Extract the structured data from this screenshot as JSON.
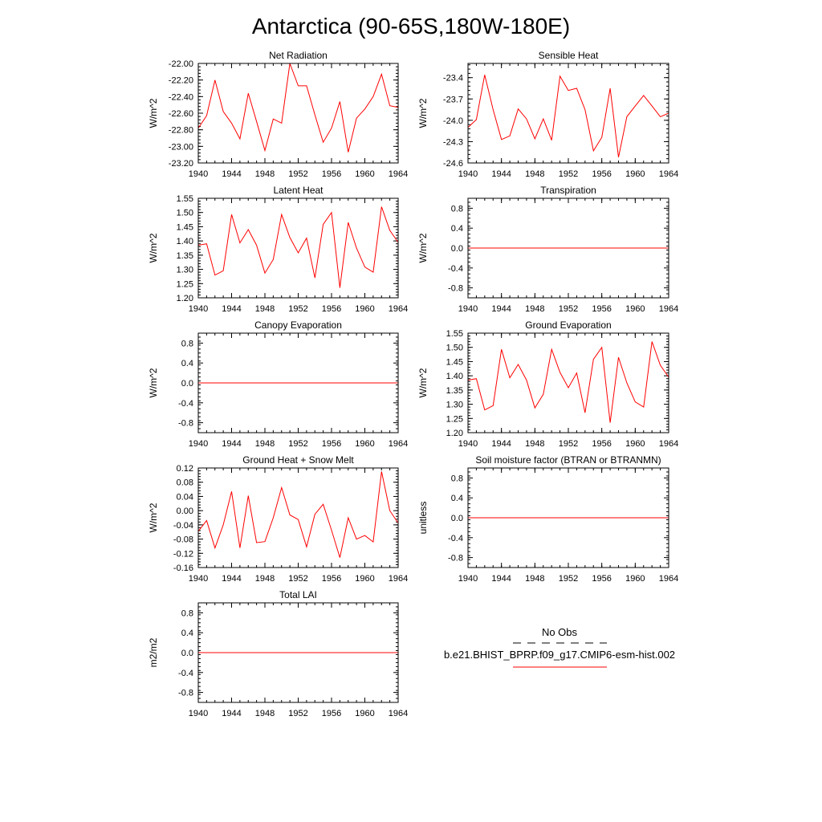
{
  "title": "Antarctica (90-65S,180W-180E)",
  "colors": {
    "model": "#ff0000",
    "obs": "#000000",
    "frame": "#000000"
  },
  "legend": {
    "obs_label": "No Obs",
    "model_label": "b.e21.BHIST_BPRP.f09_g17.CMIP6-esm-hist.002"
  },
  "chart_data": [
    {
      "type": "line",
      "title": "Net Radiation",
      "ylabel": "W/m^2",
      "xlim": [
        1940,
        1964
      ],
      "ylim": [
        -23.2,
        -22.0
      ],
      "x_ticks": [
        "1940",
        "1944",
        "1948",
        "1952",
        "1956",
        "1960",
        "1964"
      ],
      "y_ticks": [
        "-22.00",
        "-22.20",
        "-22.40",
        "-22.60",
        "-22.80",
        "-23.00",
        "-23.20"
      ],
      "y_tick_values": [
        -22.0,
        -22.2,
        -22.4,
        -22.6,
        -22.8,
        -23.0,
        -23.2
      ],
      "x": [
        1940,
        1941,
        1942,
        1943,
        1944,
        1945,
        1946,
        1947,
        1948,
        1949,
        1950,
        1951,
        1952,
        1953,
        1954,
        1955,
        1956,
        1957,
        1958,
        1959,
        1960,
        1961,
        1962,
        1963,
        1964
      ],
      "series": [
        {
          "values": [
            -22.78,
            -22.63,
            -22.2,
            -22.58,
            -22.72,
            -22.91,
            -22.36,
            -22.7,
            -23.05,
            -22.67,
            -22.72,
            -22.0,
            -22.27,
            -22.27,
            -22.62,
            -22.95,
            -22.78,
            -22.46,
            -23.07,
            -22.66,
            -22.55,
            -22.4,
            -22.13,
            -22.51,
            -22.53
          ]
        }
      ]
    },
    {
      "type": "line",
      "title": "Sensible Heat",
      "ylabel": "W/m^2",
      "xlim": [
        1940,
        1964
      ],
      "ylim": [
        -24.6,
        -23.2
      ],
      "x_ticks": [
        "1940",
        "1944",
        "1948",
        "1952",
        "1956",
        "1960",
        "1964"
      ],
      "y_ticks": [
        "-23.4",
        "-23.7",
        "-24.0",
        "-24.3",
        "-24.6"
      ],
      "y_tick_values": [
        -23.4,
        -23.7,
        -24.0,
        -24.3,
        -24.6
      ],
      "x": [
        1940,
        1941,
        1942,
        1943,
        1944,
        1945,
        1946,
        1947,
        1948,
        1949,
        1950,
        1951,
        1952,
        1953,
        1954,
        1955,
        1956,
        1957,
        1958,
        1959,
        1960,
        1961,
        1962,
        1963,
        1964
      ],
      "series": [
        {
          "values": [
            -24.1,
            -23.99,
            -23.36,
            -23.85,
            -24.27,
            -24.22,
            -23.84,
            -23.98,
            -24.26,
            -23.98,
            -24.28,
            -23.38,
            -23.58,
            -23.55,
            -23.85,
            -24.43,
            -24.24,
            -23.55,
            -24.52,
            -23.95,
            -23.8,
            -23.65,
            -23.8,
            -23.95,
            -23.9
          ]
        }
      ]
    },
    {
      "type": "line",
      "title": "Latent Heat",
      "ylabel": "W/m^2",
      "xlim": [
        1940,
        1964
      ],
      "ylim": [
        1.2,
        1.55
      ],
      "x_ticks": [
        "1940",
        "1944",
        "1948",
        "1952",
        "1956",
        "1960",
        "1964"
      ],
      "y_ticks": [
        "1.55",
        "1.50",
        "1.45",
        "1.40",
        "1.35",
        "1.30",
        "1.25",
        "1.20"
      ],
      "y_tick_values": [
        1.55,
        1.5,
        1.45,
        1.4,
        1.35,
        1.3,
        1.25,
        1.2
      ],
      "x": [
        1940,
        1941,
        1942,
        1943,
        1944,
        1945,
        1946,
        1947,
        1948,
        1949,
        1950,
        1951,
        1952,
        1953,
        1954,
        1955,
        1956,
        1957,
        1958,
        1959,
        1960,
        1961,
        1962,
        1963,
        1964
      ],
      "series": [
        {
          "values": [
            1.385,
            1.39,
            1.28,
            1.295,
            1.493,
            1.393,
            1.44,
            1.385,
            1.287,
            1.335,
            1.493,
            1.412,
            1.358,
            1.41,
            1.27,
            1.458,
            1.5,
            1.235,
            1.465,
            1.375,
            1.308,
            1.29,
            1.52,
            1.437,
            1.395
          ]
        }
      ]
    },
    {
      "type": "line",
      "title": "Transpiration",
      "ylabel": "W/m^2",
      "xlim": [
        1940,
        1964
      ],
      "ylim": [
        -1.0,
        1.0
      ],
      "x_ticks": [
        "1940",
        "1944",
        "1948",
        "1952",
        "1956",
        "1960",
        "1964"
      ],
      "y_ticks": [
        "0.8",
        "0.4",
        "0.0",
        "-0.4",
        "-0.8"
      ],
      "y_tick_values": [
        0.8,
        0.4,
        0.0,
        -0.4,
        -0.8
      ],
      "x": [
        1940,
        1964
      ],
      "series": [
        {
          "values": [
            0.0,
            0.0
          ]
        }
      ]
    },
    {
      "type": "line",
      "title": "Canopy Evaporation",
      "ylabel": "W/m^2",
      "xlim": [
        1940,
        1964
      ],
      "ylim": [
        -1.0,
        1.0
      ],
      "x_ticks": [
        "1940",
        "1944",
        "1948",
        "1952",
        "1956",
        "1960",
        "1964"
      ],
      "y_ticks": [
        "0.8",
        "0.4",
        "0.0",
        "-0.4",
        "-0.8"
      ],
      "y_tick_values": [
        0.8,
        0.4,
        0.0,
        -0.4,
        -0.8
      ],
      "x": [
        1940,
        1964
      ],
      "series": [
        {
          "values": [
            0.0,
            0.0
          ]
        }
      ]
    },
    {
      "type": "line",
      "title": "Ground Evaporation",
      "ylabel": "W/m^2",
      "xlim": [
        1940,
        1964
      ],
      "ylim": [
        1.2,
        1.55
      ],
      "x_ticks": [
        "1940",
        "1944",
        "1948",
        "1952",
        "1956",
        "1960",
        "1964"
      ],
      "y_ticks": [
        "1.55",
        "1.50",
        "1.45",
        "1.40",
        "1.35",
        "1.30",
        "1.25",
        "1.20"
      ],
      "y_tick_values": [
        1.55,
        1.5,
        1.45,
        1.4,
        1.35,
        1.3,
        1.25,
        1.2
      ],
      "x": [
        1940,
        1941,
        1942,
        1943,
        1944,
        1945,
        1946,
        1947,
        1948,
        1949,
        1950,
        1951,
        1952,
        1953,
        1954,
        1955,
        1956,
        1957,
        1958,
        1959,
        1960,
        1961,
        1962,
        1963,
        1964
      ],
      "series": [
        {
          "values": [
            1.385,
            1.39,
            1.28,
            1.295,
            1.493,
            1.393,
            1.44,
            1.385,
            1.287,
            1.335,
            1.493,
            1.412,
            1.358,
            1.41,
            1.27,
            1.458,
            1.5,
            1.235,
            1.465,
            1.375,
            1.308,
            1.29,
            1.52,
            1.437,
            1.395
          ]
        }
      ]
    },
    {
      "type": "line",
      "title": "Ground Heat + Snow Melt",
      "ylabel": "W/m^2",
      "xlim": [
        1940,
        1964
      ],
      "ylim": [
        -0.16,
        0.12
      ],
      "x_ticks": [
        "1940",
        "1944",
        "1948",
        "1952",
        "1956",
        "1960",
        "1964"
      ],
      "y_ticks": [
        "0.12",
        "0.08",
        "0.04",
        "0.00",
        "-0.04",
        "-0.08",
        "-0.12",
        "-0.16"
      ],
      "y_tick_values": [
        0.12,
        0.08,
        0.04,
        0.0,
        -0.04,
        -0.08,
        -0.12,
        -0.16
      ],
      "x": [
        1940,
        1941,
        1942,
        1943,
        1944,
        1945,
        1946,
        1947,
        1948,
        1949,
        1950,
        1951,
        1952,
        1953,
        1954,
        1955,
        1956,
        1957,
        1958,
        1959,
        1960,
        1961,
        1962,
        1963,
        1964
      ],
      "series": [
        {
          "values": [
            -0.058,
            -0.028,
            -0.105,
            -0.04,
            0.054,
            -0.105,
            0.042,
            -0.09,
            -0.087,
            -0.02,
            0.065,
            -0.012,
            -0.025,
            -0.102,
            -0.01,
            0.018,
            -0.055,
            -0.132,
            -0.02,
            -0.08,
            -0.07,
            -0.088,
            0.11,
            0.0,
            -0.035
          ]
        }
      ]
    },
    {
      "type": "line",
      "title": "Soil moisture factor (BTRAN or BTRANMN)",
      "ylabel": "unitless",
      "xlim": [
        1940,
        1964
      ],
      "ylim": [
        -1.0,
        1.0
      ],
      "x_ticks": [
        "1940",
        "1944",
        "1948",
        "1952",
        "1956",
        "1960",
        "1964"
      ],
      "y_ticks": [
        "0.8",
        "0.4",
        "0.0",
        "-0.4",
        "-0.8"
      ],
      "y_tick_values": [
        0.8,
        0.4,
        0.0,
        -0.4,
        -0.8
      ],
      "x": [
        1940,
        1964
      ],
      "series": [
        {
          "values": [
            0.0,
            0.0
          ]
        }
      ]
    },
    {
      "type": "line",
      "title": "Total LAI",
      "ylabel": "m2/m2",
      "xlim": [
        1940,
        1964
      ],
      "ylim": [
        -1.0,
        1.0
      ],
      "x_ticks": [
        "1940",
        "1944",
        "1948",
        "1952",
        "1956",
        "1960",
        "1964"
      ],
      "y_ticks": [
        "0.8",
        "0.4",
        "0.0",
        "-0.4",
        "-0.8"
      ],
      "y_tick_values": [
        0.8,
        0.4,
        0.0,
        -0.4,
        -0.8
      ],
      "x": [
        1940,
        1964
      ],
      "series": [
        {
          "values": [
            0.0,
            0.0
          ]
        }
      ]
    }
  ]
}
